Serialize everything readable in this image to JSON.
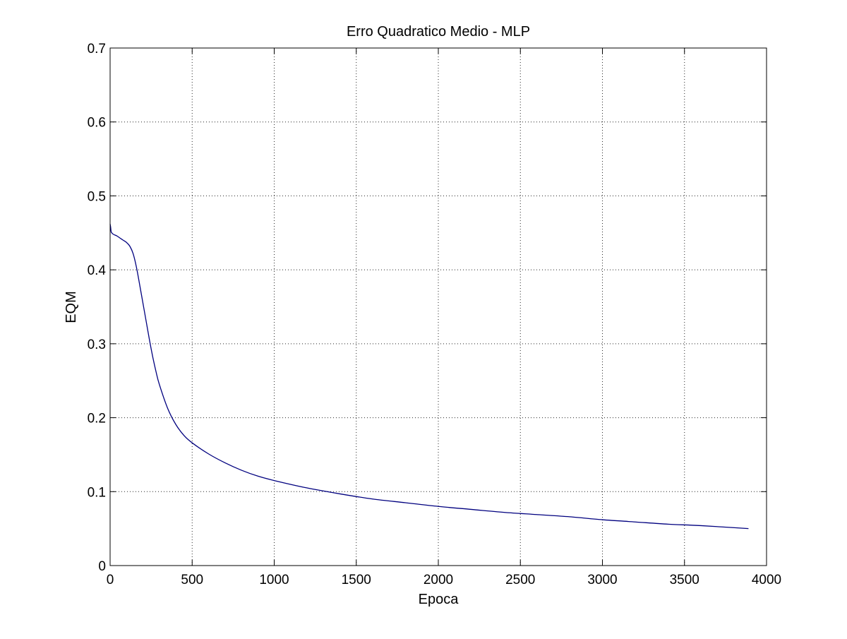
{
  "chart_data": {
    "type": "line",
    "title": "Erro Quadratico Medio - MLP",
    "xlabel": "Epoca",
    "ylabel": "EQM",
    "xlim": [
      0,
      4000
    ],
    "ylim": [
      0,
      0.7
    ],
    "grid": true,
    "x_ticks": [
      0,
      500,
      1000,
      1500,
      2000,
      2500,
      3000,
      3500,
      4000
    ],
    "x_tick_labels": [
      "0",
      "500",
      "1000",
      "1500",
      "2000",
      "2500",
      "3000",
      "3500",
      "4000"
    ],
    "y_ticks": [
      0,
      0.1,
      0.2,
      0.3,
      0.4,
      0.5,
      0.6,
      0.7
    ],
    "y_tick_labels": [
      "0",
      "0.1",
      "0.2",
      "0.3",
      "0.4",
      "0.5",
      "0.6",
      "0.7"
    ],
    "series": [
      {
        "color": "#00007f",
        "x": [
          0,
          3,
          6,
          10,
          20,
          40,
          60,
          80,
          100,
          120,
          140,
          160,
          180,
          200,
          220,
          240,
          260,
          280,
          300,
          350,
          400,
          450,
          500,
          600,
          700,
          800,
          900,
          1000,
          1200,
          1400,
          1600,
          1800,
          2000,
          2200,
          2400,
          2600,
          2800,
          3000,
          3200,
          3400,
          3600,
          3890
        ],
        "y": [
          0.462,
          0.458,
          0.452,
          0.45,
          0.448,
          0.446,
          0.443,
          0.44,
          0.437,
          0.432,
          0.422,
          0.404,
          0.38,
          0.355,
          0.33,
          0.305,
          0.282,
          0.262,
          0.245,
          0.213,
          0.191,
          0.176,
          0.166,
          0.151,
          0.139,
          0.129,
          0.121,
          0.115,
          0.105,
          0.097,
          0.09,
          0.085,
          0.08,
          0.076,
          0.072,
          0.069,
          0.066,
          0.062,
          0.059,
          0.056,
          0.054,
          0.05
        ]
      }
    ]
  }
}
